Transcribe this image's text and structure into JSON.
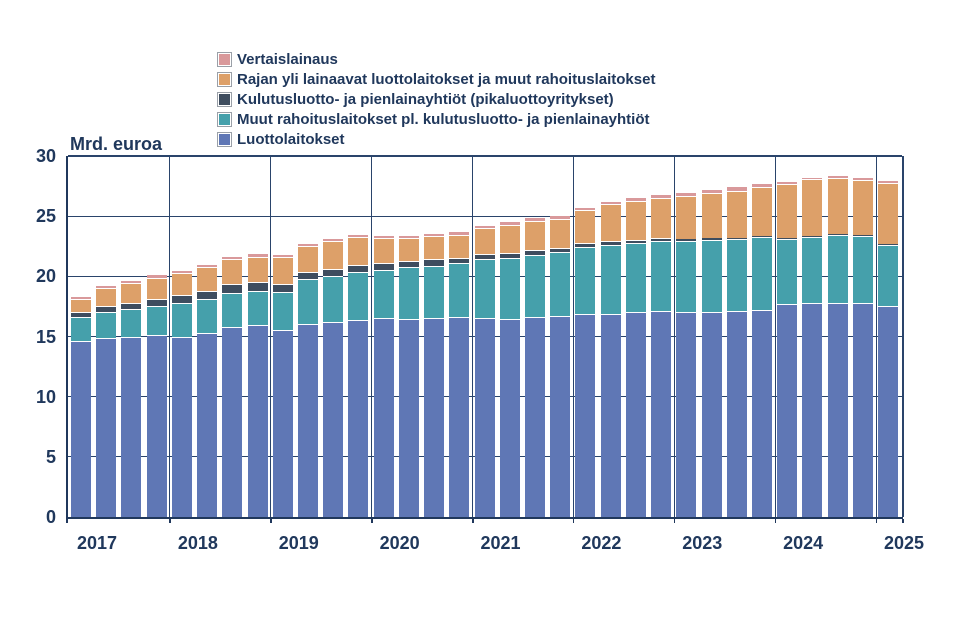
{
  "chart_data": {
    "type": "bar",
    "stacked": true,
    "title": "",
    "xlabel": "",
    "ylabel": "Mrd. euroa",
    "ylim": [
      0,
      30
    ],
    "yticks": [
      0,
      5,
      10,
      15,
      20,
      25,
      30
    ],
    "grid": true,
    "legend_position": "top-left",
    "x_year_labels": [
      "2017",
      "2018",
      "2019",
      "2020",
      "2021",
      "2022",
      "2023",
      "2024",
      "2025"
    ],
    "categories": [
      "2017Q1",
      "2017Q2",
      "2017Q3",
      "2017Q4",
      "2018Q1",
      "2018Q2",
      "2018Q3",
      "2018Q4",
      "2019Q1",
      "2019Q2",
      "2019Q3",
      "2019Q4",
      "2020Q1",
      "2020Q2",
      "2020Q3",
      "2020Q4",
      "2021Q1",
      "2021Q2",
      "2021Q3",
      "2021Q4",
      "2022Q1",
      "2022Q2",
      "2022Q3",
      "2022Q4",
      "2023Q1",
      "2023Q2",
      "2023Q3",
      "2023Q4",
      "2024Q1",
      "2024Q2",
      "2024Q3",
      "2024Q4",
      "2025Q1"
    ],
    "series": [
      {
        "name": "Luottolaitokset",
        "color": "#5F77B5",
        "values": [
          14.6,
          14.85,
          15.0,
          15.1,
          14.95,
          15.3,
          15.8,
          15.95,
          15.5,
          16.0,
          16.2,
          16.4,
          16.55,
          16.45,
          16.5,
          16.6,
          16.5,
          16.45,
          16.6,
          16.7,
          16.9,
          16.9,
          17.0,
          17.15,
          17.0,
          17.05,
          17.1,
          17.2,
          17.7,
          17.75,
          17.75,
          17.8,
          17.5
        ]
      },
      {
        "name": "Muut rahoituslaitokset pl. kulutusluotto- ja pienlainayhtiöt",
        "color": "#45A0AB",
        "values": [
          2.05,
          2.2,
          2.3,
          2.45,
          2.85,
          2.85,
          2.85,
          2.85,
          3.2,
          3.8,
          3.85,
          3.95,
          4.0,
          4.3,
          4.4,
          4.5,
          4.9,
          5.1,
          5.2,
          5.3,
          5.55,
          5.7,
          5.75,
          5.8,
          5.9,
          5.95,
          6.0,
          6.05,
          5.4,
          5.55,
          5.7,
          5.55,
          5.1
        ]
      },
      {
        "name": "Kulutusluotto- ja pienlainayhtiöt (pikaluottoyritykset)",
        "color": "#3E4D5F",
        "values": [
          0.4,
          0.45,
          0.5,
          0.55,
          0.65,
          0.65,
          0.7,
          0.7,
          0.7,
          0.6,
          0.6,
          0.6,
          0.55,
          0.5,
          0.5,
          0.45,
          0.45,
          0.4,
          0.4,
          0.35,
          0.3,
          0.3,
          0.3,
          0.25,
          0.2,
          0.15,
          0.1,
          0.1,
          0.1,
          0.05,
          0.05,
          0.05,
          0.05
        ]
      },
      {
        "name": "Rajan yli lainaavat luottolaitokset ja muut rahoituslaitokset",
        "color": "#DDA069",
        "values": [
          1.1,
          1.55,
          1.65,
          1.8,
          1.8,
          1.95,
          2.05,
          2.1,
          2.2,
          2.1,
          2.25,
          2.3,
          2.1,
          1.95,
          1.95,
          1.9,
          2.15,
          2.35,
          2.4,
          2.4,
          2.75,
          3.1,
          3.2,
          3.3,
          3.6,
          3.75,
          3.9,
          4.05,
          4.45,
          4.7,
          4.7,
          4.6,
          5.1
        ]
      },
      {
        "name": "Vertaislainaus",
        "color": "#D9999B",
        "values": [
          0.15,
          0.25,
          0.25,
          0.3,
          0.25,
          0.25,
          0.3,
          0.3,
          0.25,
          0.25,
          0.3,
          0.25,
          0.25,
          0.25,
          0.25,
          0.3,
          0.3,
          0.3,
          0.3,
          0.35,
          0.3,
          0.3,
          0.35,
          0.35,
          0.3,
          0.35,
          0.4,
          0.35,
          0.25,
          0.1,
          0.1,
          0.2,
          0.15
        ]
      }
    ],
    "legend_order": [
      4,
      3,
      2,
      1,
      0
    ]
  },
  "colors": {
    "text": "#20385C",
    "grid": "#2A446B",
    "axis": "#20385C",
    "background": "#FFFFFF",
    "segment_border": "#FFFFFF"
  }
}
